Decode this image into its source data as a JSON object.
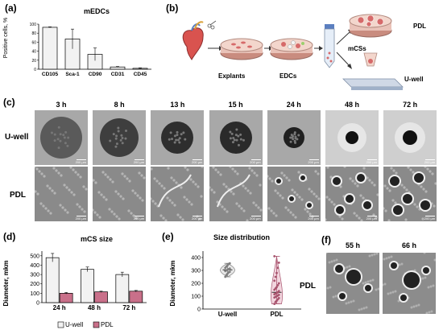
{
  "panel_a": {
    "label": "(a)",
    "chart_data": {
      "type": "bar",
      "title": "mEDCs",
      "ylabel": "Positive cells, %",
      "categories": [
        "CD105",
        "Sca-1",
        "CD90",
        "CD31",
        "CD45"
      ],
      "values": [
        93,
        67,
        33,
        5,
        2
      ],
      "errors": [
        1,
        22,
        14,
        1,
        1
      ],
      "ylim": [
        0,
        100
      ],
      "yticks": [
        "0",
        "20",
        "40",
        "60",
        "80",
        "100"
      ]
    }
  },
  "panel_b": {
    "label": "(b)",
    "explants_label": "Explants",
    "edcs_label": "EDCs",
    "mcss_label": "mCSs",
    "pdl_label": "PDL",
    "uwell_label": "U-well"
  },
  "panel_c": {
    "label": "(c)",
    "times": [
      "3 h",
      "8 h",
      "13 h",
      "15 h",
      "24 h",
      "48 h",
      "72 h"
    ],
    "row_uwell": "U-well",
    "row_pdl": "PDL",
    "scale": "200 µm"
  },
  "panel_d": {
    "label": "(d)",
    "chart_data": {
      "type": "bar",
      "title": "mCS size",
      "ylabel": "Diameter, mkm",
      "categories": [
        "24 h",
        "48 h",
        "72 h"
      ],
      "series": [
        {
          "name": "U-well",
          "values": [
            480,
            355,
            300
          ],
          "errors": [
            45,
            25,
            25
          ],
          "color": "#f2f2f2"
        },
        {
          "name": "PDL",
          "values": [
            100,
            115,
            122
          ],
          "errors": [
            8,
            7,
            8
          ],
          "color": "#c9708a"
        }
      ],
      "ylim": [
        0,
        550
      ],
      "yticks": [
        "0",
        "100",
        "200",
        "300",
        "400",
        "500"
      ],
      "legend": "bottom"
    }
  },
  "panel_e": {
    "label": "(e)",
    "chart_data": {
      "type": "scatter",
      "title": "Size distribution",
      "ylabel": "Diameter, mkm",
      "categories": [
        "U-well",
        "PDL"
      ],
      "ylim": [
        0,
        450
      ],
      "yticks": [
        "0",
        "100",
        "200",
        "300",
        "400"
      ],
      "series": [
        {
          "name": "U-well",
          "values": [
            250,
            265,
            275,
            285,
            290,
            295,
            300,
            305,
            310,
            315,
            320,
            330,
            340,
            350,
            355
          ],
          "color": "#7f7f7f"
        },
        {
          "name": "PDL",
          "values": [
            40,
            55,
            65,
            75,
            85,
            90,
            95,
            100,
            105,
            110,
            115,
            120,
            125,
            130,
            140,
            150,
            160,
            170,
            185,
            200,
            220,
            250,
            280,
            320,
            360,
            410
          ],
          "color": "#a8546e"
        }
      ]
    }
  },
  "panel_f": {
    "label": "(f)",
    "times": [
      "55 h",
      "66 h"
    ],
    "row_pdl": "PDL"
  }
}
